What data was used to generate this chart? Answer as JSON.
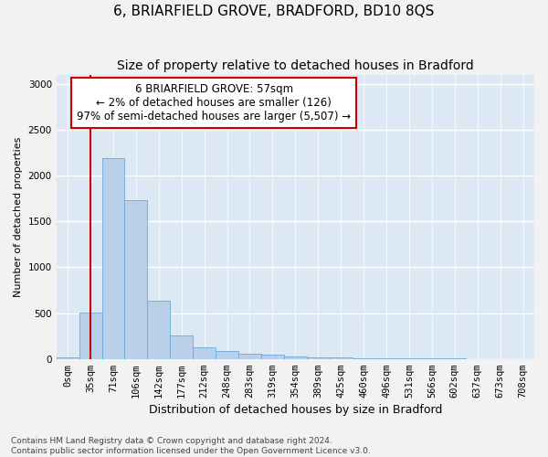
{
  "title": "6, BRIARFIELD GROVE, BRADFORD, BD10 8QS",
  "subtitle": "Size of property relative to detached houses in Bradford",
  "xlabel": "Distribution of detached houses by size in Bradford",
  "ylabel": "Number of detached properties",
  "bar_values": [
    20,
    510,
    2190,
    1730,
    630,
    260,
    130,
    85,
    60,
    45,
    30,
    20,
    15,
    10,
    8,
    5,
    3,
    2,
    1,
    1,
    1
  ],
  "bar_labels": [
    "0sqm",
    "35sqm",
    "71sqm",
    "106sqm",
    "142sqm",
    "177sqm",
    "212sqm",
    "248sqm",
    "283sqm",
    "319sqm",
    "354sqm",
    "389sqm",
    "425sqm",
    "460sqm",
    "496sqm",
    "531sqm",
    "566sqm",
    "602sqm",
    "637sqm",
    "673sqm",
    "708sqm"
  ],
  "bar_color": "#b8d0ea",
  "bar_edge_color": "#6aaad4",
  "vline_color": "#cc0000",
  "vline_x": 1.0,
  "annotation_text": "6 BRIARFIELD GROVE: 57sqm\n← 2% of detached houses are smaller (126)\n97% of semi-detached houses are larger (5,507) →",
  "annotation_box_color": "#ffffff",
  "annotation_border_color": "#cc0000",
  "ylim": [
    0,
    3100
  ],
  "yticks": [
    0,
    500,
    1000,
    1500,
    2000,
    2500,
    3000
  ],
  "background_color": "#dce9f5",
  "fig_background": "#f2f2f2",
  "grid_color": "#ffffff",
  "footnote": "Contains HM Land Registry data © Crown copyright and database right 2024.\nContains public sector information licensed under the Open Government Licence v3.0.",
  "title_fontsize": 11,
  "subtitle_fontsize": 10,
  "xlabel_fontsize": 9,
  "ylabel_fontsize": 8,
  "annotation_fontsize": 8.5,
  "tick_fontsize": 7.5,
  "footnote_fontsize": 6.5
}
